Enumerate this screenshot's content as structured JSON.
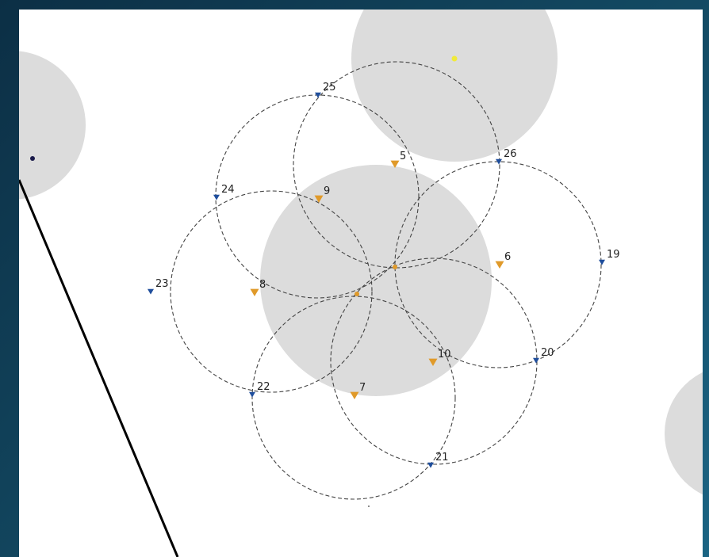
{
  "colors": {
    "background": "#ffffff",
    "shaded_region": "#dcdcdc",
    "circle_stroke": "#444444",
    "blue_marker": "#1f4e9c",
    "orange_marker": "#e09a2a",
    "yellow_point": "#f0ea3a",
    "navy_point": "#1a1a4a",
    "line": "#000000"
  },
  "blue_markers": [
    {
      "label": "19"
    },
    {
      "label": "20"
    },
    {
      "label": "21"
    },
    {
      "label": "22"
    },
    {
      "label": "23"
    },
    {
      "label": "24"
    },
    {
      "label": "25"
    },
    {
      "label": "26"
    }
  ],
  "orange_markers": [
    {
      "label": "5"
    },
    {
      "label": "6"
    },
    {
      "label": "7"
    },
    {
      "label": "8"
    },
    {
      "label": "9"
    },
    {
      "label": "10"
    }
  ]
}
